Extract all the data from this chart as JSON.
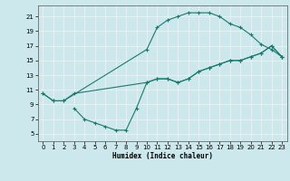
{
  "title": "",
  "xlabel": "Humidex (Indice chaleur)",
  "xlim": [
    -0.5,
    23.5
  ],
  "ylim": [
    4.0,
    22.5
  ],
  "xticks": [
    0,
    1,
    2,
    3,
    4,
    5,
    6,
    7,
    8,
    9,
    10,
    11,
    12,
    13,
    14,
    15,
    16,
    17,
    18,
    19,
    20,
    21,
    22,
    23
  ],
  "yticks": [
    5,
    7,
    9,
    11,
    13,
    15,
    17,
    19,
    21
  ],
  "bg_color": "#cce8ec",
  "grid_color": "#f0f0f0",
  "line_color": "#1a7a6e",
  "curve1_x": [
    0,
    1,
    2,
    10,
    11,
    12,
    13,
    14,
    15,
    16,
    17,
    18,
    19,
    20,
    21,
    22,
    23
  ],
  "curve1_y": [
    10.5,
    9.5,
    9.5,
    16.5,
    19.5,
    20.5,
    21.0,
    21.5,
    21.5,
    21.5,
    21.0,
    20.0,
    19.5,
    18.5,
    17.2,
    16.5,
    15.5
  ],
  "curve2_x": [
    0,
    1,
    2,
    3,
    10,
    11,
    12,
    13,
    14,
    15,
    16,
    17,
    18,
    19,
    20,
    21,
    22,
    23
  ],
  "curve2_y": [
    10.5,
    9.5,
    9.5,
    10.5,
    12.0,
    12.5,
    12.5,
    12.0,
    12.5,
    13.5,
    14.0,
    14.5,
    15.0,
    15.0,
    15.5,
    16.0,
    17.0,
    15.5
  ],
  "curve3_x": [
    3,
    4,
    5,
    6,
    7,
    8,
    9,
    10,
    11,
    12,
    13,
    14,
    15,
    16,
    17,
    18,
    19,
    20,
    21,
    22,
    23
  ],
  "curve3_y": [
    8.5,
    7.0,
    6.5,
    6.0,
    5.5,
    5.5,
    8.5,
    12.0,
    12.5,
    12.5,
    12.0,
    12.5,
    13.5,
    14.0,
    14.5,
    15.0,
    15.0,
    15.5,
    16.0,
    17.0,
    15.5
  ],
  "lw": 0.8,
  "ms": 2.2,
  "mew": 0.8,
  "xlabel_fontsize": 5.5,
  "tick_fontsize": 5.0
}
